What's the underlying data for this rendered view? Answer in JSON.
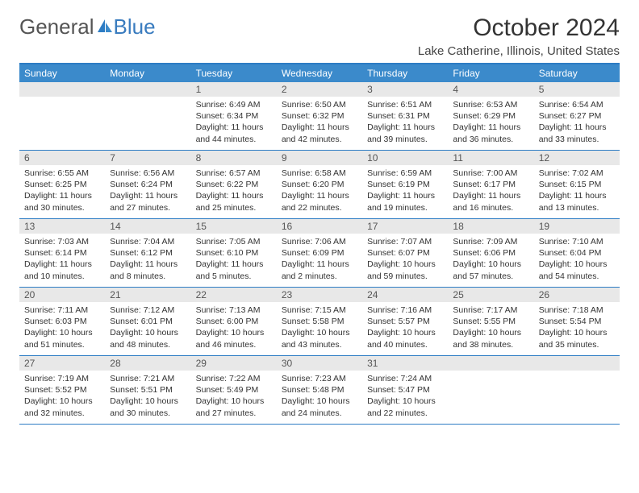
{
  "logo": {
    "general": "General",
    "blue": "Blue"
  },
  "title": "October 2024",
  "location": "Lake Catherine, Illinois, United States",
  "colors": {
    "header_bg": "#3b8acb",
    "header_text": "#ffffff",
    "border": "#2d7cc4",
    "daynum_bg": "#e8e8e8",
    "daynum_text": "#555555",
    "body_text": "#333333",
    "logo_gray": "#555555",
    "logo_blue": "#3a7cbf"
  },
  "day_labels": [
    "Sunday",
    "Monday",
    "Tuesday",
    "Wednesday",
    "Thursday",
    "Friday",
    "Saturday"
  ],
  "weeks": [
    [
      {
        "empty": true
      },
      {
        "empty": true
      },
      {
        "num": "1",
        "sunrise": "Sunrise: 6:49 AM",
        "sunset": "Sunset: 6:34 PM",
        "daylight": "Daylight: 11 hours and 44 minutes."
      },
      {
        "num": "2",
        "sunrise": "Sunrise: 6:50 AM",
        "sunset": "Sunset: 6:32 PM",
        "daylight": "Daylight: 11 hours and 42 minutes."
      },
      {
        "num": "3",
        "sunrise": "Sunrise: 6:51 AM",
        "sunset": "Sunset: 6:31 PM",
        "daylight": "Daylight: 11 hours and 39 minutes."
      },
      {
        "num": "4",
        "sunrise": "Sunrise: 6:53 AM",
        "sunset": "Sunset: 6:29 PM",
        "daylight": "Daylight: 11 hours and 36 minutes."
      },
      {
        "num": "5",
        "sunrise": "Sunrise: 6:54 AM",
        "sunset": "Sunset: 6:27 PM",
        "daylight": "Daylight: 11 hours and 33 minutes."
      }
    ],
    [
      {
        "num": "6",
        "sunrise": "Sunrise: 6:55 AM",
        "sunset": "Sunset: 6:25 PM",
        "daylight": "Daylight: 11 hours and 30 minutes."
      },
      {
        "num": "7",
        "sunrise": "Sunrise: 6:56 AM",
        "sunset": "Sunset: 6:24 PM",
        "daylight": "Daylight: 11 hours and 27 minutes."
      },
      {
        "num": "8",
        "sunrise": "Sunrise: 6:57 AM",
        "sunset": "Sunset: 6:22 PM",
        "daylight": "Daylight: 11 hours and 25 minutes."
      },
      {
        "num": "9",
        "sunrise": "Sunrise: 6:58 AM",
        "sunset": "Sunset: 6:20 PM",
        "daylight": "Daylight: 11 hours and 22 minutes."
      },
      {
        "num": "10",
        "sunrise": "Sunrise: 6:59 AM",
        "sunset": "Sunset: 6:19 PM",
        "daylight": "Daylight: 11 hours and 19 minutes."
      },
      {
        "num": "11",
        "sunrise": "Sunrise: 7:00 AM",
        "sunset": "Sunset: 6:17 PM",
        "daylight": "Daylight: 11 hours and 16 minutes."
      },
      {
        "num": "12",
        "sunrise": "Sunrise: 7:02 AM",
        "sunset": "Sunset: 6:15 PM",
        "daylight": "Daylight: 11 hours and 13 minutes."
      }
    ],
    [
      {
        "num": "13",
        "sunrise": "Sunrise: 7:03 AM",
        "sunset": "Sunset: 6:14 PM",
        "daylight": "Daylight: 11 hours and 10 minutes."
      },
      {
        "num": "14",
        "sunrise": "Sunrise: 7:04 AM",
        "sunset": "Sunset: 6:12 PM",
        "daylight": "Daylight: 11 hours and 8 minutes."
      },
      {
        "num": "15",
        "sunrise": "Sunrise: 7:05 AM",
        "sunset": "Sunset: 6:10 PM",
        "daylight": "Daylight: 11 hours and 5 minutes."
      },
      {
        "num": "16",
        "sunrise": "Sunrise: 7:06 AM",
        "sunset": "Sunset: 6:09 PM",
        "daylight": "Daylight: 11 hours and 2 minutes."
      },
      {
        "num": "17",
        "sunrise": "Sunrise: 7:07 AM",
        "sunset": "Sunset: 6:07 PM",
        "daylight": "Daylight: 10 hours and 59 minutes."
      },
      {
        "num": "18",
        "sunrise": "Sunrise: 7:09 AM",
        "sunset": "Sunset: 6:06 PM",
        "daylight": "Daylight: 10 hours and 57 minutes."
      },
      {
        "num": "19",
        "sunrise": "Sunrise: 7:10 AM",
        "sunset": "Sunset: 6:04 PM",
        "daylight": "Daylight: 10 hours and 54 minutes."
      }
    ],
    [
      {
        "num": "20",
        "sunrise": "Sunrise: 7:11 AM",
        "sunset": "Sunset: 6:03 PM",
        "daylight": "Daylight: 10 hours and 51 minutes."
      },
      {
        "num": "21",
        "sunrise": "Sunrise: 7:12 AM",
        "sunset": "Sunset: 6:01 PM",
        "daylight": "Daylight: 10 hours and 48 minutes."
      },
      {
        "num": "22",
        "sunrise": "Sunrise: 7:13 AM",
        "sunset": "Sunset: 6:00 PM",
        "daylight": "Daylight: 10 hours and 46 minutes."
      },
      {
        "num": "23",
        "sunrise": "Sunrise: 7:15 AM",
        "sunset": "Sunset: 5:58 PM",
        "daylight": "Daylight: 10 hours and 43 minutes."
      },
      {
        "num": "24",
        "sunrise": "Sunrise: 7:16 AM",
        "sunset": "Sunset: 5:57 PM",
        "daylight": "Daylight: 10 hours and 40 minutes."
      },
      {
        "num": "25",
        "sunrise": "Sunrise: 7:17 AM",
        "sunset": "Sunset: 5:55 PM",
        "daylight": "Daylight: 10 hours and 38 minutes."
      },
      {
        "num": "26",
        "sunrise": "Sunrise: 7:18 AM",
        "sunset": "Sunset: 5:54 PM",
        "daylight": "Daylight: 10 hours and 35 minutes."
      }
    ],
    [
      {
        "num": "27",
        "sunrise": "Sunrise: 7:19 AM",
        "sunset": "Sunset: 5:52 PM",
        "daylight": "Daylight: 10 hours and 32 minutes."
      },
      {
        "num": "28",
        "sunrise": "Sunrise: 7:21 AM",
        "sunset": "Sunset: 5:51 PM",
        "daylight": "Daylight: 10 hours and 30 minutes."
      },
      {
        "num": "29",
        "sunrise": "Sunrise: 7:22 AM",
        "sunset": "Sunset: 5:49 PM",
        "daylight": "Daylight: 10 hours and 27 minutes."
      },
      {
        "num": "30",
        "sunrise": "Sunrise: 7:23 AM",
        "sunset": "Sunset: 5:48 PM",
        "daylight": "Daylight: 10 hours and 24 minutes."
      },
      {
        "num": "31",
        "sunrise": "Sunrise: 7:24 AM",
        "sunset": "Sunset: 5:47 PM",
        "daylight": "Daylight: 10 hours and 22 minutes."
      },
      {
        "empty": true
      },
      {
        "empty": true
      }
    ]
  ]
}
